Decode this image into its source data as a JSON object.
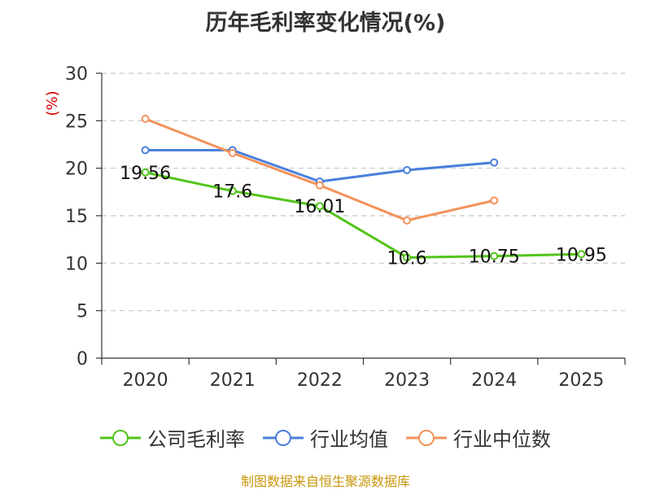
{
  "chart_data": {
    "type": "line",
    "title": "历年毛利率变化情况(%)",
    "ylabel": "(%)",
    "xlabel": "",
    "categories": [
      "2020",
      "2021",
      "2022",
      "2023",
      "2024",
      "2025"
    ],
    "ylim": [
      0,
      30
    ],
    "yticks": [
      0,
      5,
      10,
      15,
      20,
      25,
      30
    ],
    "grid": true,
    "legend_position": "bottom",
    "series": [
      {
        "name": "公司毛利率",
        "color": "#52c41a",
        "labels": true,
        "values": [
          19.56,
          17.6,
          16.01,
          10.6,
          10.75,
          10.95
        ]
      },
      {
        "name": "行业均值",
        "color": "#4a7fdc",
        "labels": false,
        "values": [
          21.9,
          21.9,
          18.6,
          19.8,
          20.6,
          null
        ]
      },
      {
        "name": "行业中位数",
        "color": "#f4915a",
        "labels": false,
        "values": [
          25.2,
          21.6,
          18.2,
          14.5,
          16.6,
          null
        ]
      }
    ]
  },
  "source": "制图数据来自恒生聚源数据库",
  "ylabel_color": "#dd0000"
}
